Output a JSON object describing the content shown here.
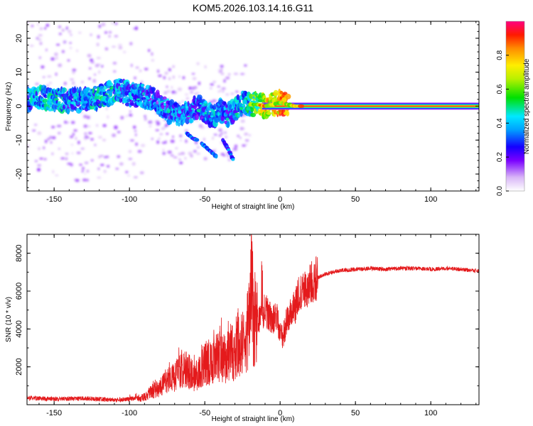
{
  "title": "KOM5.2026.103.14.16.G11",
  "chart_data": [
    {
      "type": "heatmap",
      "name": "spectrogram",
      "xlabel": "Height of straight line (km)",
      "ylabel": "Frequency (Hz)",
      "xlim": [
        -168,
        132
      ],
      "ylim": [
        -25,
        25
      ],
      "xticks": [
        -150,
        -100,
        -50,
        0,
        50,
        100
      ],
      "yticks": [
        -20,
        -10,
        0,
        10,
        20
      ],
      "ridge": {
        "heights_km": [
          -166,
          -160,
          -150,
          -140,
          -130,
          -120,
          -112,
          -105,
          -98,
          -90,
          -84,
          -78,
          -72,
          -66,
          -60,
          -55,
          -50,
          -45,
          -40,
          -35,
          -30,
          -25,
          -20,
          -15,
          -10,
          -5,
          0,
          5,
          10,
          20,
          40,
          60,
          80,
          100,
          132
        ],
        "freq_hz": [
          2,
          2.5,
          2,
          1.5,
          2,
          2.5,
          4,
          4.5,
          3,
          3,
          2,
          0,
          -2,
          -3,
          -1.5,
          0,
          -1.5,
          -3,
          -1,
          -3,
          -1,
          1,
          0.5,
          0.5,
          0,
          0.5,
          1,
          0.5,
          0,
          0,
          0,
          0,
          0,
          0,
          0
        ],
        "amplitude": [
          0.3,
          0.35,
          0.35,
          0.3,
          0.3,
          0.35,
          0.35,
          0.3,
          0.3,
          0.3,
          0.25,
          0.25,
          0.28,
          0.3,
          0.25,
          0.25,
          0.3,
          0.3,
          0.3,
          0.28,
          0.3,
          0.35,
          0.4,
          0.55,
          0.65,
          0.7,
          0.75,
          0.8,
          0.85,
          0.88,
          0.9,
          0.92,
          0.93,
          0.94,
          0.95
        ]
      },
      "branches": [
        {
          "heights_km": [
            -62,
            -58,
            -55
          ],
          "freq_hz": [
            -8,
            -9.5,
            -10
          ]
        },
        {
          "heights_km": [
            -52,
            -47,
            -42
          ],
          "freq_hz": [
            -11,
            -13,
            -15
          ]
        },
        {
          "heights_km": [
            -38,
            -34,
            -31
          ],
          "freq_hz": [
            -10,
            -13,
            -16
          ]
        }
      ]
    },
    {
      "type": "line",
      "name": "snr",
      "xlabel": "Height of straight line (km)",
      "ylabel": "SNR (10 * v/v)",
      "xlim": [
        -168,
        132
      ],
      "ylim": [
        0,
        9000
      ],
      "xticks": [
        -150,
        -100,
        -50,
        0,
        50,
        100
      ],
      "yticks": [
        2000,
        4000,
        6000,
        8000
      ],
      "color": "#e41a1c",
      "series": [
        {
          "name": "SNR",
          "x": [
            -168,
            -150,
            -130,
            -110,
            -100,
            -90,
            -85,
            -80,
            -75,
            -70,
            -66,
            -62,
            -58,
            -55,
            -52,
            -50,
            -47,
            -44,
            -42,
            -40,
            -38,
            -36,
            -34,
            -32,
            -30,
            -28,
            -26,
            -24,
            -22,
            -20,
            -19,
            -18,
            -16,
            -14,
            -12,
            -10,
            -8,
            -6,
            -4,
            -2,
            0,
            2,
            4,
            6,
            8,
            10,
            12,
            14,
            16,
            18,
            20,
            22,
            25,
            30,
            35,
            40,
            45,
            50,
            60,
            70,
            80,
            90,
            100,
            110,
            120,
            132
          ],
          "y": [
            350,
            300,
            330,
            250,
            300,
            400,
            700,
            900,
            1200,
            1500,
            1800,
            1900,
            1600,
            1500,
            1900,
            2200,
            2200,
            2300,
            2500,
            2600,
            2600,
            2400,
            2600,
            2800,
            2600,
            3000,
            3200,
            3600,
            3800,
            4200,
            8600,
            4500,
            4200,
            4400,
            4800,
            5000,
            4800,
            4600,
            4500,
            4600,
            3800,
            3600,
            4300,
            4700,
            5000,
            5200,
            5700,
            5900,
            6000,
            6200,
            6400,
            6500,
            6700,
            6900,
            7000,
            7100,
            7100,
            7150,
            7200,
            7150,
            7200,
            7200,
            7150,
            7200,
            7150,
            7050
          ]
        }
      ]
    }
  ],
  "colorbar": {
    "label": "Normalized spectral amplitude",
    "ticks": [
      "0.0",
      "0.2",
      "0.4",
      "0.6",
      "0.8"
    ],
    "tick_values": [
      0.0,
      0.2,
      0.4,
      0.6,
      0.8
    ]
  }
}
